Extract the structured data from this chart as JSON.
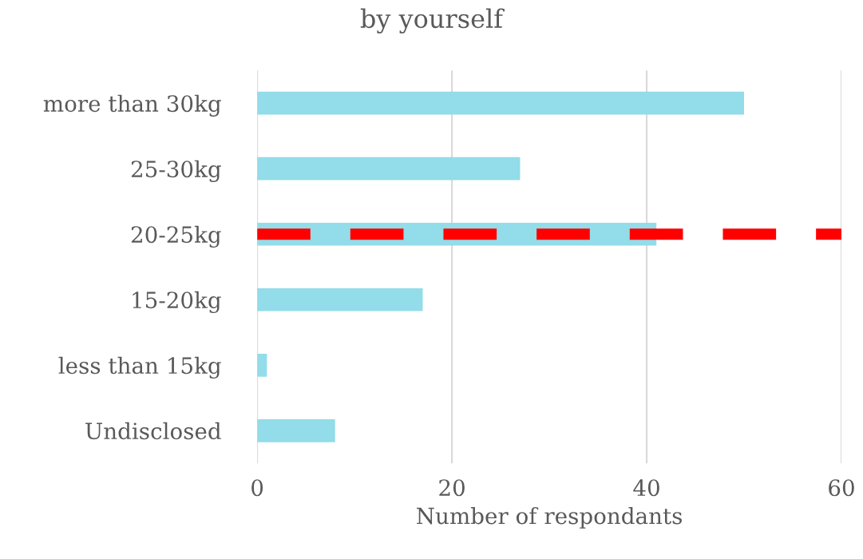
{
  "chart_data": {
    "type": "bar",
    "orientation": "horizontal",
    "title": "by yourself",
    "xlabel": "Number of respondants",
    "categories": [
      "more than 30kg",
      "25-30kg",
      "20-25kg",
      "15-20kg",
      "less than 15kg",
      "Undisclosed"
    ],
    "values": [
      50,
      27,
      41,
      17,
      1,
      8
    ],
    "color": "#93dce9",
    "xlim": [
      0,
      60
    ],
    "xticks": [
      0,
      20,
      40,
      60
    ],
    "grid": "x",
    "ref_lines": [
      {
        "axis": "y",
        "value": "20-25kg",
        "color": "#ff0000",
        "line_style": "dashed"
      }
    ]
  }
}
